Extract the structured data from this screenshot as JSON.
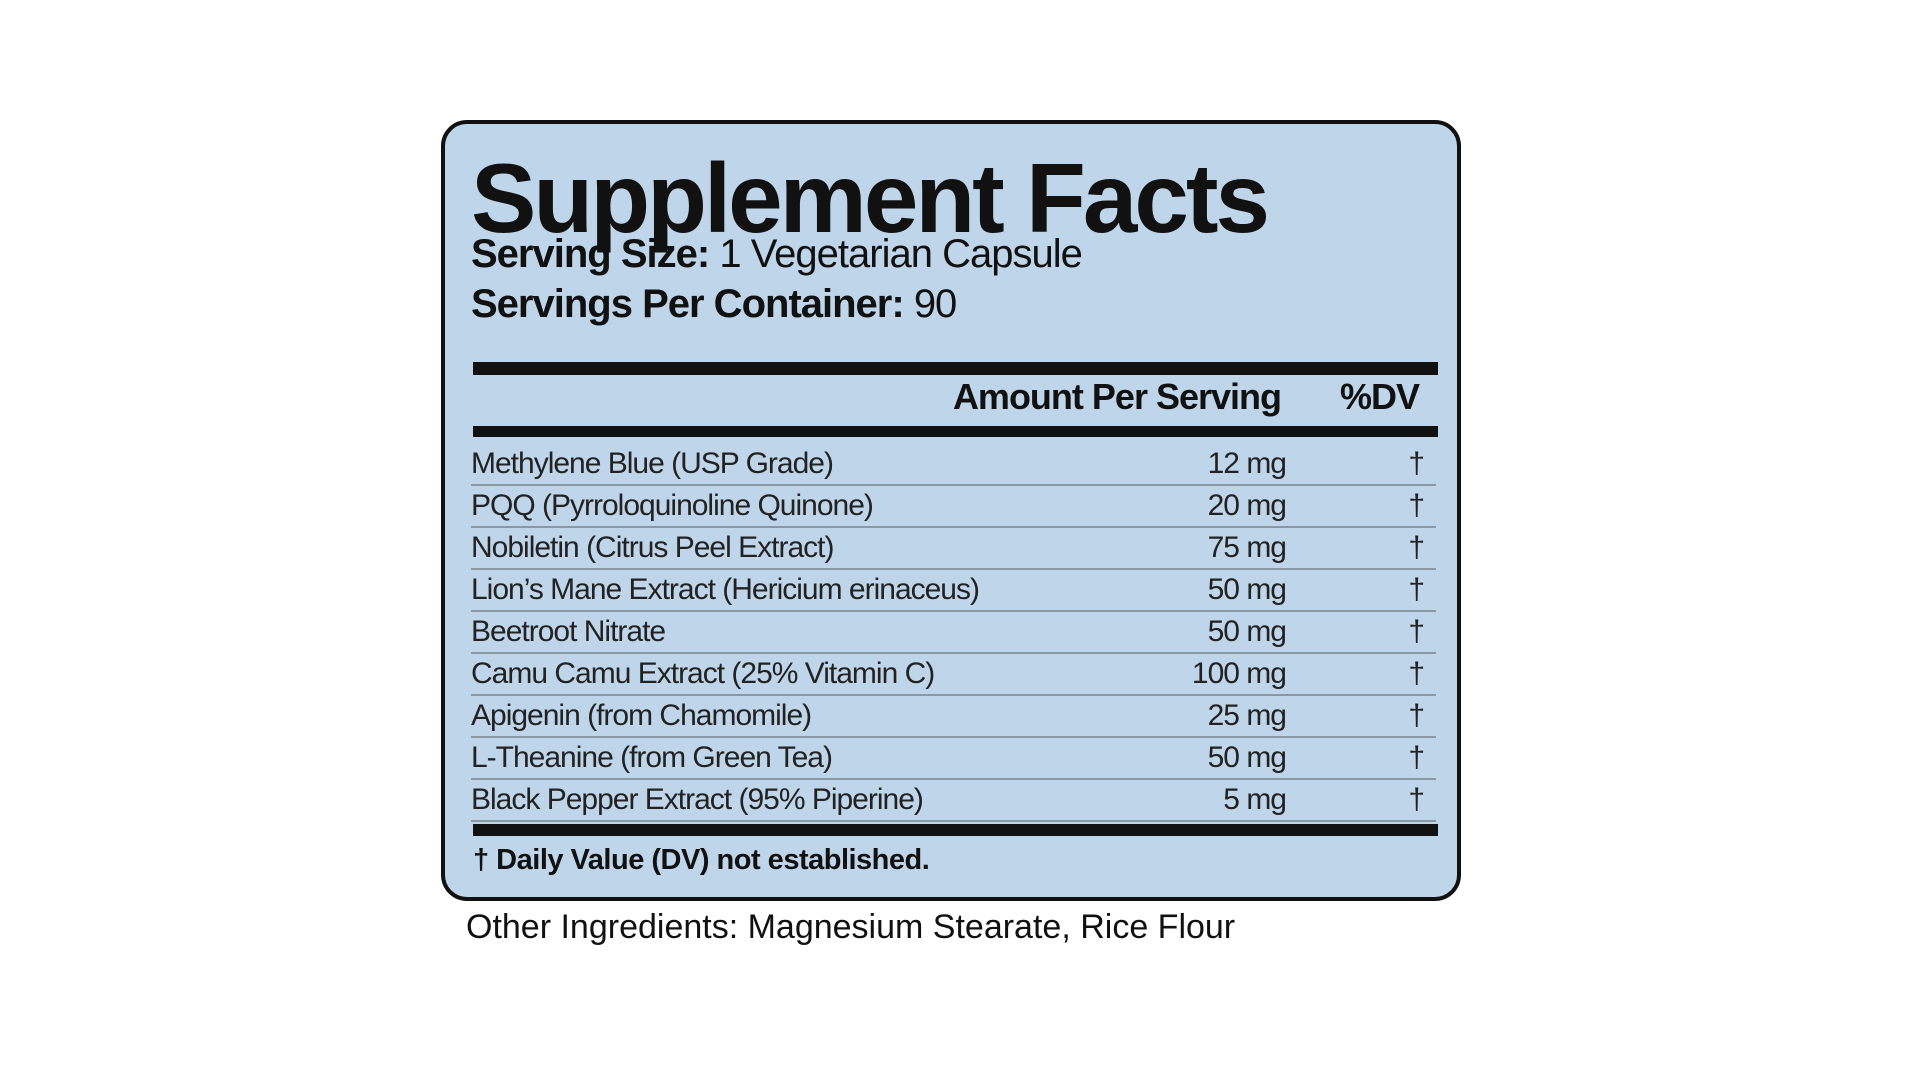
{
  "label": {
    "title": "Supplement Facts",
    "serving_size": {
      "label": "Serving Size:",
      "value": "1 Vegetarian Capsule"
    },
    "servings_per_container": {
      "label": "Servings Per Container:",
      "value": "90"
    },
    "header": {
      "amount": "Amount Per Serving",
      "dv": "%DV"
    },
    "rows": [
      {
        "name": "Methylene Blue (USP Grade)",
        "amount": "12 mg",
        "dv": "†"
      },
      {
        "name": "PQQ (Pyrroloquinoline Quinone)",
        "amount": "20 mg",
        "dv": "†"
      },
      {
        "name": "Nobiletin (Citrus Peel Extract)",
        "amount": "75 mg",
        "dv": "†"
      },
      {
        "name": "Lion’s Mane Extract (Hericium erinaceus)",
        "amount": "50 mg",
        "dv": "†"
      },
      {
        "name": "Beetroot Nitrate",
        "amount": "50 mg",
        "dv": "†"
      },
      {
        "name": "Camu Camu Extract (25% Vitamin C)",
        "amount": "100 mg",
        "dv": "†"
      },
      {
        "name": "Apigenin (from Chamomile)",
        "amount": "25 mg",
        "dv": "†"
      },
      {
        "name": "L-Theanine (from Green Tea)",
        "amount": "50 mg",
        "dv": "†"
      },
      {
        "name": "Black Pepper Extract (95% Piperine)",
        "amount": "5 mg",
        "dv": "†"
      }
    ],
    "footnote": "† Daily Value (DV) not established."
  },
  "other_ingredients": "Other Ingredients: Magnesium Stearate, Rice Flour"
}
